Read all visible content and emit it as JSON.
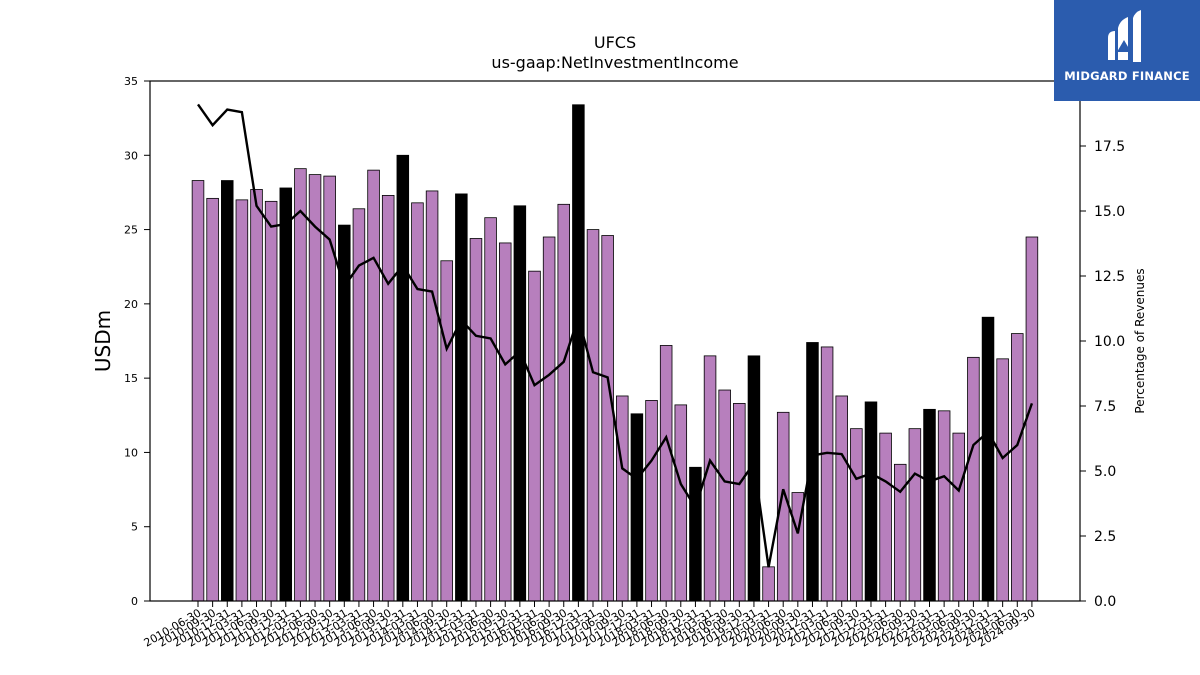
{
  "chart_data": {
    "type": "bar",
    "title": "UFCS",
    "subtitle": "us-gaap:NetInvestmentIncome",
    "ylabel": "USDm",
    "y2label": "Percentage of Revenues",
    "ylim": [
      0,
      35
    ],
    "y2lim": [
      0,
      20
    ],
    "yticks": [
      "0",
      "5",
      "10",
      "15",
      "20",
      "25",
      "30",
      "35"
    ],
    "y2ticks": [
      "0.0",
      "2.5",
      "5.0",
      "7.5",
      "10.0",
      "12.5",
      "15.0",
      "17.5"
    ],
    "categories": [
      "2010-06-30",
      "2010-09-30",
      "2010-12-31",
      "2011-03-31",
      "2011-06-30",
      "2011-09-30",
      "2011-12-31",
      "2012-03-31",
      "2012-06-30",
      "2012-09-30",
      "2012-12-31",
      "2013-03-31",
      "2013-06-30",
      "2013-09-30",
      "2013-12-31",
      "2014-03-31",
      "2014-06-30",
      "2014-09-30",
      "2014-12-31",
      "2015-03-31",
      "2015-06-30",
      "2015-09-30",
      "2015-12-31",
      "2016-03-31",
      "2016-06-30",
      "2016-09-30",
      "2016-12-31",
      "2017-03-31",
      "2017-06-30",
      "2017-09-30",
      "2017-12-31",
      "2018-03-31",
      "2018-06-30",
      "2018-09-30",
      "2018-12-31",
      "2019-03-31",
      "2019-06-30",
      "2019-09-30",
      "2019-12-31",
      "2020-03-31",
      "2020-06-30",
      "2020-09-30",
      "2020-12-31",
      "2021-03-31",
      "2021-06-30",
      "2021-09-30",
      "2021-12-31",
      "2022-03-31",
      "2022-06-30",
      "2022-09-30",
      "2022-12-31",
      "2023-03-31",
      "2023-06-30",
      "2023-09-30",
      "2023-12-31",
      "2024-03-31",
      "2024-06-30",
      "2024-09-30"
    ],
    "xtick_labels": [
      "2010-06-30",
      "2010-09-30",
      "2010-12-31",
      "2011-03-31",
      "2011-06-30",
      "2011-09-30",
      "2011-12-31",
      "2012-03-31",
      "2012-06-30",
      "2012-09-30",
      "2012-12-31",
      "2013-03-31",
      "2013-06-30",
      "2013-09-30",
      "2013-12-31",
      "2014-03-31",
      "2014-06-30",
      "2014-09-30",
      "2014-12-31",
      "2015-03-31",
      "2015-06-30",
      "2015-09-30",
      "2015-12-31",
      "2016-03-31",
      "2016-06-30",
      "2016-09-30",
      "2016-12-31",
      "2017-03-31",
      "2017-06-30",
      "2017-09-30",
      "2017-12-31",
      "2018-03-31",
      "2018-06-30",
      "2018-09-30",
      "2018-12-31",
      "2019-03-31",
      "2019-06-30",
      "2019-09-30",
      "2019-12-31",
      "2020-03-31",
      "2020-06-30",
      "2020-09-30",
      "2020-12-31",
      "2021-03-31",
      "2021-06-30",
      "2021-09-30",
      "2021-12-31",
      "2022-03-31",
      "2022-06-30",
      "2022-09-30",
      "2022-12-31",
      "2023-03-31",
      "2023-06-30",
      "2023-09-30",
      "2023-12-31",
      "2024-03-31",
      "2024-06-30",
      "2024-09-30"
    ],
    "series": [
      {
        "type": "bar",
        "axis": "left",
        "values": [
          28.3,
          27.1,
          28.3,
          27.0,
          27.7,
          26.9,
          27.8,
          29.1,
          28.7,
          28.6,
          25.3,
          26.4,
          29.0,
          27.3,
          30.0,
          26.8,
          27.6,
          22.9,
          27.4,
          24.4,
          25.8,
          24.1,
          26.6,
          22.2,
          24.5,
          26.7,
          33.4,
          25.0,
          24.6,
          13.8,
          12.6,
          13.5,
          17.2,
          13.2,
          9.0,
          16.5,
          14.2,
          13.3,
          16.5,
          2.3,
          12.7,
          7.3,
          17.4,
          17.1,
          13.8,
          11.6,
          13.4,
          11.3,
          9.2,
          11.6,
          12.9,
          12.8,
          11.3,
          16.4,
          19.1,
          16.3,
          18.0,
          24.5
        ],
        "highlight": [
          false,
          false,
          true,
          false,
          false,
          false,
          true,
          false,
          false,
          false,
          true,
          false,
          false,
          false,
          true,
          false,
          false,
          false,
          true,
          false,
          false,
          false,
          true,
          false,
          false,
          false,
          true,
          false,
          false,
          false,
          true,
          false,
          false,
          false,
          true,
          false,
          false,
          false,
          true,
          false,
          false,
          false,
          true,
          false,
          false,
          false,
          true,
          false,
          false,
          false,
          true,
          false,
          false,
          false,
          true,
          false,
          false,
          false
        ]
      },
      {
        "type": "line",
        "axis": "right",
        "values": [
          19.1,
          18.3,
          18.9,
          18.8,
          15.2,
          14.4,
          14.5,
          15.0,
          14.4,
          13.9,
          12.1,
          12.9,
          13.2,
          12.2,
          12.9,
          12.0,
          11.9,
          9.7,
          10.8,
          10.2,
          10.1,
          9.1,
          9.6,
          8.3,
          8.7,
          9.2,
          10.9,
          8.8,
          8.6,
          5.1,
          4.7,
          5.4,
          6.3,
          4.5,
          3.6,
          5.4,
          4.6,
          4.5,
          5.3,
          1.3,
          4.3,
          2.6,
          5.6,
          5.7,
          5.65,
          4.7,
          4.9,
          4.6,
          4.2,
          4.9,
          4.6,
          4.8,
          4.25,
          6.0,
          6.5,
          5.5,
          6.0,
          7.6
        ]
      }
    ],
    "colors": {
      "bar": "#b77fbd",
      "bar_highlight": "#000000",
      "line": "#000000"
    }
  },
  "logo": {
    "text": "MIDGARD FINANCE",
    "background": "#2b5cae"
  }
}
